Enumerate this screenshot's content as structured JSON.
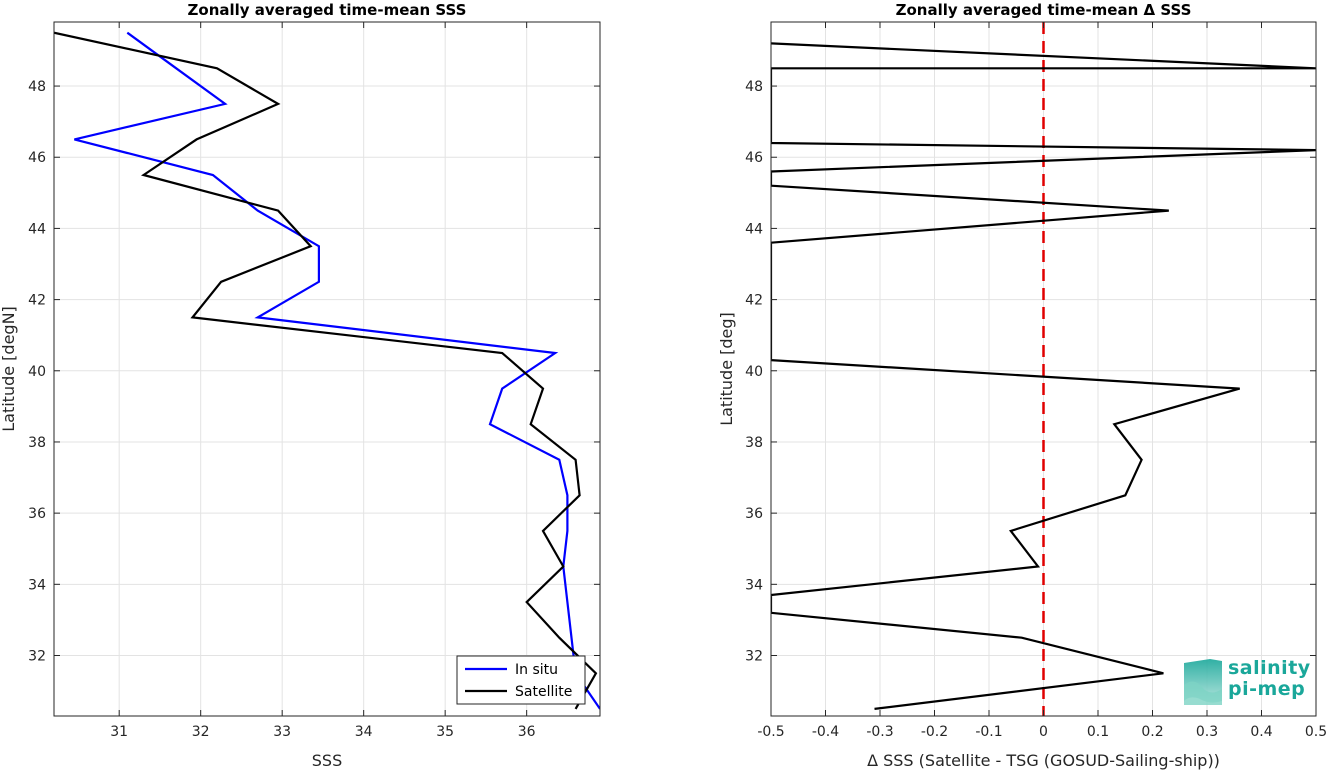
{
  "chart_data": [
    {
      "type": "line",
      "title": "Zonally averaged time-mean SSS",
      "xlabel": "SSS",
      "ylabel": "Latitude [degN]",
      "xlim": [
        30.2,
        36.9
      ],
      "ylim": [
        30.3,
        49.8
      ],
      "xticks": [
        31,
        32,
        33,
        34,
        35,
        36
      ],
      "yticks": [
        32,
        34,
        36,
        38,
        40,
        42,
        44,
        46,
        48
      ],
      "grid": true,
      "legend": "bottom-right",
      "series": [
        {
          "name": "In situ",
          "color": "#0000ff",
          "x": [
            36.9,
            36.6,
            36.55,
            36.5,
            36.45,
            36.5,
            36.5,
            36.4,
            35.55,
            35.7,
            36.35,
            32.7,
            33.45,
            33.45,
            32.7,
            32.15,
            30.45,
            32.3,
            31.7,
            31.1
          ],
          "y": [
            30.5,
            31.5,
            32.5,
            33.5,
            34.5,
            35.5,
            36.5,
            37.5,
            38.5,
            39.5,
            40.5,
            41.5,
            42.5,
            43.5,
            44.5,
            45.5,
            46.5,
            47.5,
            48.5,
            49.5
          ]
        },
        {
          "name": "Satellite",
          "color": "#000000",
          "x": [
            36.6,
            36.85,
            36.4,
            36.0,
            36.45,
            36.2,
            36.65,
            36.6,
            36.05,
            36.2,
            35.7,
            31.9,
            32.25,
            33.35,
            32.95,
            31.3,
            31.95,
            32.95,
            32.2,
            30.2
          ],
          "y": [
            30.5,
            31.5,
            32.5,
            33.5,
            34.5,
            35.5,
            36.5,
            37.5,
            38.5,
            39.5,
            40.5,
            41.5,
            42.5,
            43.5,
            44.5,
            45.5,
            46.5,
            47.5,
            48.5,
            49.5
          ]
        }
      ]
    },
    {
      "type": "line",
      "title": "Zonally averaged time-mean Δ SSS",
      "xlabel": "Δ SSS (Satellite - TSG (GOSUD-Sailing-ship))",
      "ylabel": "Latitude [deg]",
      "xlim": [
        -0.5,
        0.5
      ],
      "ylim": [
        30.3,
        49.8
      ],
      "xticks": [
        "-0.5",
        "-0.4",
        "-0.3",
        "-0.2",
        "-0.1",
        "0",
        "0.1",
        "0.2",
        "0.3",
        "0.4",
        "0.5"
      ],
      "yticks": [
        32,
        34,
        36,
        38,
        40,
        42,
        44,
        46,
        48
      ],
      "grid": true,
      "reference_line": {
        "x": 0,
        "color": "#e00000",
        "style": "dashed"
      },
      "series": [
        {
          "color": "#000000",
          "x": [
            -0.31,
            0.22,
            -0.04,
            -0.5,
            -0.5,
            -0.01,
            -0.06,
            0.15,
            0.18,
            0.13,
            0.36,
            -0.5,
            -0.5,
            -0.5,
            -0.5,
            0.23,
            -0.5,
            -0.5,
            0.5,
            -0.5,
            -0.5,
            0.5,
            -0.5
          ],
          "y": [
            30.5,
            31.5,
            32.5,
            33.2,
            33.7,
            34.5,
            35.5,
            36.5,
            37.5,
            38.5,
            39.5,
            40.3,
            40.35,
            42.0,
            43.6,
            44.5,
            45.2,
            45.6,
            46.2,
            46.4,
            48.5,
            48.5,
            49.2
          ]
        }
      ]
    }
  ],
  "logo": {
    "line1": "salinity",
    "line2": "pi-mep"
  }
}
